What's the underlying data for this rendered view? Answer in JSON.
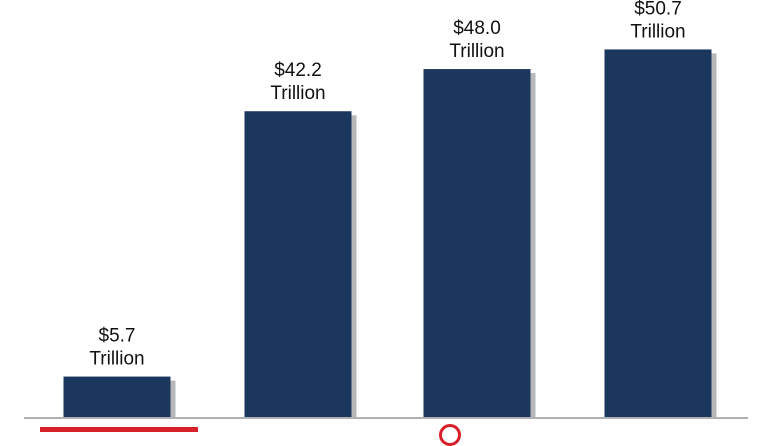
{
  "chart_data": {
    "type": "bar",
    "title": "",
    "categories": [
      "",
      "",
      "",
      ""
    ],
    "values": [
      5.7,
      42.2,
      48.0,
      50.7
    ],
    "value_labels": [
      {
        "amount": "$5.7",
        "unit": "Trillion"
      },
      {
        "amount": "$42.2",
        "unit": "Trillion"
      },
      {
        "amount": "$48.0",
        "unit": "Trillion"
      },
      {
        "amount": "$50.7",
        "unit": "Trillion"
      }
    ],
    "ylim": [
      0,
      57.5
    ],
    "grid": false,
    "colors": {
      "bar": "#1b375e",
      "shadow": "#b8b8b8",
      "axis": "#b0b0b0",
      "label": "#111111"
    }
  }
}
